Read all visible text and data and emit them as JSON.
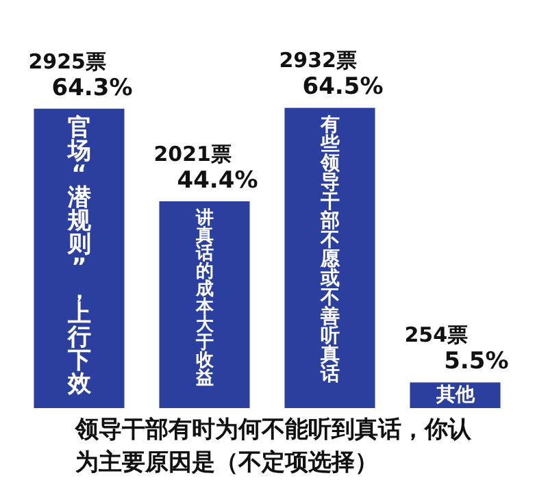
{
  "chart_data": {
    "type": "bar",
    "title": "领导干部有时为何不能听到真话，你认为主要原因是（不定项选择）",
    "categories": [
      "官场“潜规则”，上行下效",
      "讲真话的成本大于收益",
      "有些领导干部不愿或不善听真话",
      "其他"
    ],
    "values": [
      64.3,
      44.4,
      64.5,
      5.5
    ],
    "value_labels": [
      "64.3%",
      "44.4%",
      "64.5%",
      "5.5%"
    ],
    "color": "#2b3f9e",
    "annotations": [
      {
        "text": "2925票",
        "x": "官场“潜规则”，上行下效",
        "y": 64.3
      },
      {
        "text": "2021票",
        "x": "讲真话的成本大于收益",
        "y": 44.4
      },
      {
        "text": "2932票",
        "x": "有些领导干部不愿或不善听真话",
        "y": 64.5
      },
      {
        "text": "254票",
        "x": "其他",
        "y": 5.5
      }
    ],
    "legend": false
  }
}
